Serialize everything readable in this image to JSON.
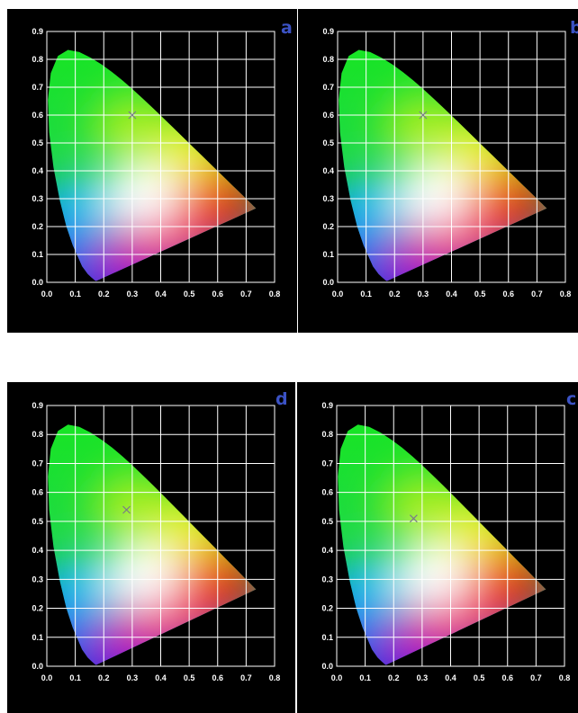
{
  "colors": {
    "background": "#000000",
    "grid": "#ffffff",
    "marker": "#7a7a8a",
    "panel_letter": "#3b52c4"
  },
  "chart_data": [
    {
      "type": "scatter",
      "panel_label": "a",
      "title": "",
      "xlabel": "",
      "ylabel": "",
      "xlim": [
        0.0,
        0.8
      ],
      "ylim": [
        0.0,
        0.9
      ],
      "x_ticks": [
        "0.0",
        "0.1",
        "0.2",
        "0.3",
        "0.4",
        "0.5",
        "0.6",
        "0.7",
        "0.8"
      ],
      "y_ticks": [
        "0.0",
        "0.1",
        "0.2",
        "0.3",
        "0.4",
        "0.5",
        "0.6",
        "0.7",
        "0.8",
        "0.9"
      ],
      "grid": true,
      "background": "CIE 1931 chromaticity diagram",
      "points": [
        {
          "x": 0.3,
          "y": 0.6,
          "marker": "cross"
        }
      ]
    },
    {
      "type": "scatter",
      "panel_label": "b",
      "title": "",
      "xlabel": "",
      "ylabel": "",
      "xlim": [
        0.0,
        0.8
      ],
      "ylim": [
        0.0,
        0.9
      ],
      "x_ticks": [
        "0.0",
        "0.1",
        "0.2",
        "0.3",
        "0.4",
        "0.5",
        "0.6",
        "0.7",
        "0.8"
      ],
      "y_ticks": [
        "0.0",
        "0.1",
        "0.2",
        "0.3",
        "0.4",
        "0.5",
        "0.6",
        "0.7",
        "0.8",
        "0.9"
      ],
      "grid": true,
      "background": "CIE 1931 chromaticity diagram",
      "points": [
        {
          "x": 0.3,
          "y": 0.6,
          "marker": "cross"
        }
      ]
    },
    {
      "type": "scatter",
      "panel_label": "d",
      "title": "",
      "xlabel": "",
      "ylabel": "",
      "xlim": [
        0.0,
        0.8
      ],
      "ylim": [
        0.0,
        0.9
      ],
      "x_ticks": [
        "0.0",
        "0.1",
        "0.2",
        "0.3",
        "0.4",
        "0.5",
        "0.6",
        "0.7",
        "0.8"
      ],
      "y_ticks": [
        "0.0",
        "0.1",
        "0.2",
        "0.3",
        "0.4",
        "0.5",
        "0.6",
        "0.7",
        "0.8",
        "0.9"
      ],
      "grid": true,
      "background": "CIE 1931 chromaticity diagram",
      "points": [
        {
          "x": 0.28,
          "y": 0.54,
          "marker": "cross"
        }
      ]
    },
    {
      "type": "scatter",
      "panel_label": "c",
      "title": "",
      "xlabel": "",
      "ylabel": "",
      "xlim": [
        0.0,
        0.8
      ],
      "ylim": [
        0.0,
        0.9
      ],
      "x_ticks": [
        "0.0",
        "0.1",
        "0.2",
        "0.3",
        "0.4",
        "0.5",
        "0.6",
        "0.7",
        "0.8"
      ],
      "y_ticks": [
        "0.0",
        "0.1",
        "0.2",
        "0.3",
        "0.4",
        "0.5",
        "0.6",
        "0.7",
        "0.8",
        "0.9"
      ],
      "grid": true,
      "background": "CIE 1931 chromaticity diagram",
      "points": [
        {
          "x": 0.27,
          "y": 0.51,
          "marker": "cross"
        }
      ]
    }
  ]
}
